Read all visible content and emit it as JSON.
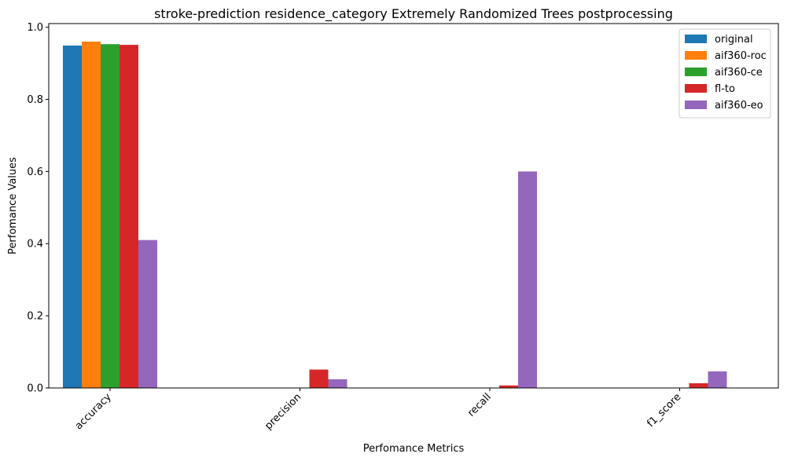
{
  "chart_data": {
    "type": "bar",
    "title": "stroke-prediction residence_category Extremely Randomized Trees postprocessing",
    "xlabel": "Perfomance Metrics",
    "ylabel": "Perfomance Values",
    "categories": [
      "accuracy",
      "precision",
      "recall",
      "f1_score"
    ],
    "ylim": [
      0,
      1.0
    ],
    "yticks": [
      "0.0",
      "0.2",
      "0.4",
      "0.6",
      "0.8",
      "1.0"
    ],
    "grid": false,
    "legend_position": "top-right",
    "series": [
      {
        "name": "original",
        "color": "#1f77b4",
        "values": [
          0.949,
          0.0,
          0.0,
          0.0
        ]
      },
      {
        "name": "aif360-roc",
        "color": "#ff7f0e",
        "values": [
          0.96,
          0.0,
          0.0,
          0.0
        ]
      },
      {
        "name": "aif360-ce",
        "color": "#2ca02c",
        "values": [
          0.953,
          0.0,
          0.0,
          0.0
        ]
      },
      {
        "name": "fl-to",
        "color": "#d62728",
        "values": [
          0.951,
          0.051,
          0.007,
          0.013
        ]
      },
      {
        "name": "aif360-eo",
        "color": "#9467bd",
        "values": [
          0.41,
          0.024,
          0.6,
          0.046
        ]
      }
    ]
  }
}
